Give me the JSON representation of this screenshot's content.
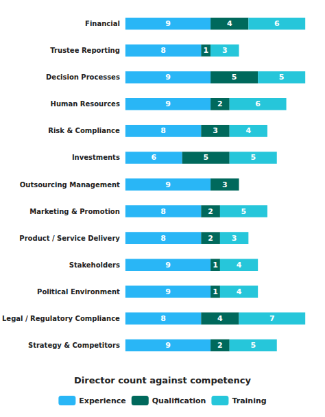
{
  "chart_data": {
    "type": "bar",
    "orientation": "horizontal",
    "stacked": true,
    "data_labels": true,
    "tick_labels": "y",
    "grid": false,
    "legend": "bottom",
    "title": "Director count against competency",
    "categories": [
      "Financial",
      "Trustee Reporting",
      "Decision Processes",
      "Human Resources",
      "Risk & Compliance",
      "Investments",
      "Outsourcing Management",
      "Marketing & Promotion",
      "Product / Service Delivery",
      "Stakeholders",
      "Political Environment",
      "Legal / Regulatory Compliance",
      "Strategy & Competitors"
    ],
    "xlim": [
      0,
      20
    ],
    "series": [
      {
        "name": "Experience",
        "color": "#29b6f6",
        "values": [
          9,
          8,
          9,
          9,
          8,
          6,
          9,
          8,
          8,
          9,
          9,
          8,
          9
        ]
      },
      {
        "name": "Qualification",
        "color": "#00695c",
        "values": [
          4,
          1,
          5,
          2,
          3,
          5,
          3,
          2,
          2,
          1,
          1,
          4,
          2
        ]
      },
      {
        "name": "Training",
        "color": "#26c6da",
        "values": [
          6,
          3,
          5,
          6,
          4,
          5,
          0,
          5,
          3,
          4,
          4,
          7,
          5
        ]
      }
    ]
  }
}
